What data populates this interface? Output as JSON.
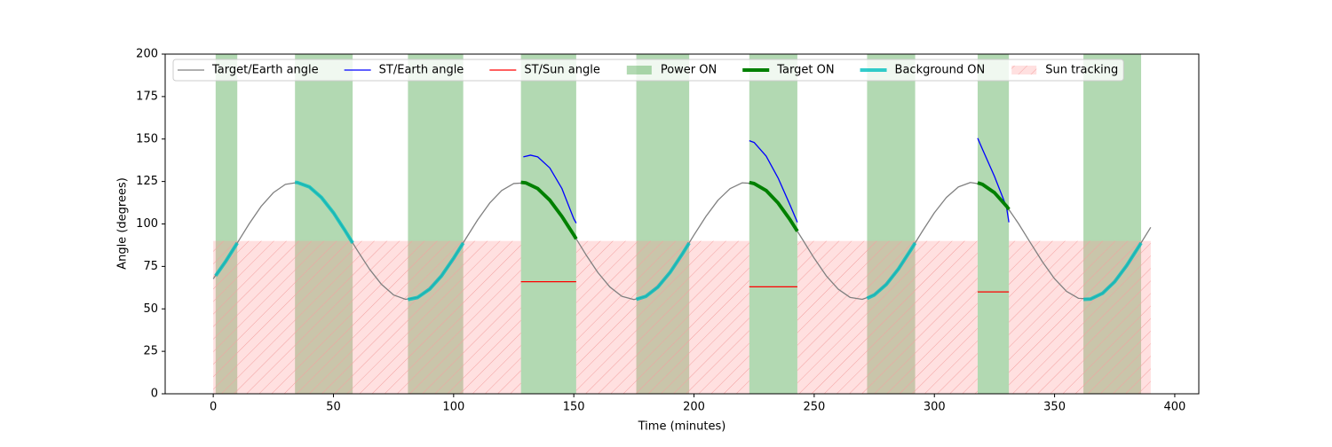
{
  "chart_data": {
    "type": "line",
    "xlabel": "Time (minutes)",
    "ylabel": "Angle (degrees)",
    "xlim": [
      -20,
      410
    ],
    "ylim": [
      0,
      200
    ],
    "xticks": [
      0,
      50,
      100,
      150,
      200,
      250,
      300,
      350,
      400
    ],
    "yticks": [
      0,
      25,
      50,
      75,
      100,
      125,
      150,
      175,
      200
    ],
    "legend": "upper left",
    "series": [
      {
        "name": "Target/Earth angle",
        "kind": "line",
        "color": "#808080",
        "width": 1,
        "x": [
          0,
          5,
          10,
          15,
          20,
          25,
          30,
          35,
          40,
          45,
          50,
          55,
          60,
          65,
          70,
          75,
          80,
          85,
          90,
          95,
          100,
          105,
          110,
          115,
          120,
          125,
          130,
          135,
          140,
          145,
          150,
          155,
          160,
          165,
          170,
          175,
          180,
          185,
          190,
          195,
          200,
          205,
          210,
          215,
          220,
          225,
          230,
          235,
          240,
          245,
          250,
          255,
          260,
          265,
          270,
          275,
          280,
          285,
          290,
          295,
          300,
          305,
          310,
          315,
          320,
          325,
          330,
          335,
          340,
          345,
          350,
          355,
          360,
          365,
          370,
          375,
          380,
          385,
          390
        ],
        "values": [
          67.7,
          77.6,
          88.8,
          100.2,
          110.5,
          118.4,
          123.3,
          124.4,
          121.8,
          115.6,
          106.6,
          95.7,
          84.3,
          73.4,
          64.4,
          58.2,
          55.6,
          56.7,
          61.6,
          69.5,
          79.8,
          91.2,
          102.4,
          112.3,
          119.7,
          123.8,
          124.2,
          120.8,
          114,
          104.5,
          93.5,
          82,
          71.4,
          62.9,
          57.4,
          55.5,
          57.4,
          62.9,
          71.4,
          82,
          93.5,
          104.5,
          114,
          120.8,
          124.2,
          123.8,
          119.7,
          112.3,
          102.4,
          91.2,
          79.8,
          69.5,
          61.6,
          56.7,
          55.6,
          58.2,
          64.4,
          73.4,
          84.3,
          95.7,
          106.6,
          115.6,
          121.8,
          124.4,
          123.3,
          118.4,
          110.5,
          100.2,
          88.8,
          77.6,
          67.7,
          60.3,
          56.2,
          55.8,
          59.2,
          66,
          75.5,
          86.6,
          98
        ]
      },
      {
        "name": "ST/Earth angle",
        "kind": "line",
        "color": "#0000ff",
        "width": 1,
        "x": [
          129,
          132,
          135,
          140,
          145,
          150,
          151,
          190,
          223,
          225,
          230,
          235,
          240,
          243,
          280,
          318,
          320,
          325,
          330,
          331
        ],
        "values": [
          139.5,
          140.5,
          139.5,
          133,
          121,
          103,
          100.5,
          null,
          149,
          148,
          140,
          127,
          111,
          101,
          null,
          150.5,
          144,
          128,
          110,
          101
        ]
      },
      {
        "name": "ST/Sun angle",
        "kind": "line",
        "color": "#ff0000",
        "width": 1,
        "x": [
          128,
          151,
          190,
          223,
          243,
          280,
          318,
          331
        ],
        "values": [
          66,
          66,
          null,
          63,
          63,
          null,
          60,
          60
        ]
      },
      {
        "name": "Power ON",
        "kind": "span",
        "color": "#008000",
        "alpha": 0.3,
        "x_start": [
          1,
          34,
          81,
          128,
          176,
          223,
          272,
          318,
          362
        ],
        "x_end": [
          10,
          58,
          104,
          151,
          198,
          243,
          292,
          331,
          386
        ]
      },
      {
        "name": "Target ON",
        "kind": "line",
        "color": "#008000",
        "width": 3,
        "x": [
          128,
          130,
          135,
          140,
          145,
          150,
          151,
          190,
          223,
          225,
          230,
          235,
          240,
          243,
          280,
          318,
          320,
          325,
          330,
          331
        ],
        "values": [
          124.5,
          124.2,
          120.8,
          114,
          104.5,
          93.5,
          91.2,
          null,
          124.4,
          123.8,
          119.7,
          112.3,
          102.4,
          95.7,
          null,
          124.2,
          123.3,
          118.4,
          110.5,
          108.6
        ]
      },
      {
        "name": "Background ON",
        "kind": "line",
        "color": "#00bfbf",
        "width": 3,
        "alpha": 0.8,
        "x": [
          1,
          5,
          10,
          20,
          34,
          35,
          40,
          45,
          50,
          55,
          58,
          70,
          81,
          85,
          90,
          95,
          100,
          104,
          140,
          176,
          180,
          185,
          190,
          195,
          198,
          230,
          272,
          275,
          280,
          285,
          290,
          292,
          340,
          362,
          365,
          370,
          375,
          380,
          385,
          386
        ],
        "values": [
          69.5,
          77.6,
          88.8,
          null,
          124.5,
          124.4,
          121.8,
          115.6,
          106.6,
          95.7,
          88.8,
          null,
          55.5,
          56.7,
          61.6,
          69.5,
          79.8,
          88.8,
          null,
          55.6,
          57.4,
          62.9,
          71.4,
          82,
          88.8,
          null,
          56.2,
          58.2,
          64.4,
          73.4,
          84.3,
          88.8,
          null,
          55.6,
          55.8,
          59.2,
          66,
          75.5,
          86.6,
          88.8
        ]
      },
      {
        "name": "Sun tracking",
        "kind": "band",
        "color": "#ff9999",
        "alpha": 0.3,
        "hatch": "//",
        "x_start": [
          0,
          151,
          243,
          331
        ],
        "x_end": [
          128,
          223,
          318,
          390
        ],
        "values": [
          90,
          90,
          90,
          90
        ]
      }
    ]
  }
}
